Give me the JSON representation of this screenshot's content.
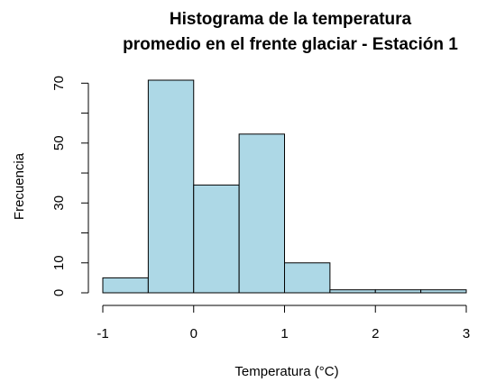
{
  "chart_data": {
    "type": "bar",
    "histogram": true,
    "title": "Histograma de la temperatura",
    "subtitle": "promedio en el frente glaciar - Estación 1",
    "xlabel": "Temperatura (°C)",
    "ylabel": "Frecuencia",
    "bins": [
      {
        "from": -1.0,
        "to": -0.5,
        "count": 5
      },
      {
        "from": -0.5,
        "to": 0.0,
        "count": 71
      },
      {
        "from": 0.0,
        "to": 0.5,
        "count": 36
      },
      {
        "from": 0.5,
        "to": 1.0,
        "count": 53
      },
      {
        "from": 1.0,
        "to": 1.5,
        "count": 10
      },
      {
        "from": 1.5,
        "to": 2.0,
        "count": 1
      },
      {
        "from": 2.0,
        "to": 2.5,
        "count": 1
      },
      {
        "from": 2.5,
        "to": 3.0,
        "count": 1
      }
    ],
    "xticks": [
      "-1",
      "0",
      "1",
      "2",
      "3"
    ],
    "yticks": [
      "0",
      "10",
      "30",
      "50",
      "70"
    ],
    "xlim": [
      -1,
      3
    ],
    "ylim": [
      0,
      71
    ],
    "bar_color": "#add8e6",
    "bar_border_color": "#000000",
    "grid": false,
    "legend": "none"
  }
}
